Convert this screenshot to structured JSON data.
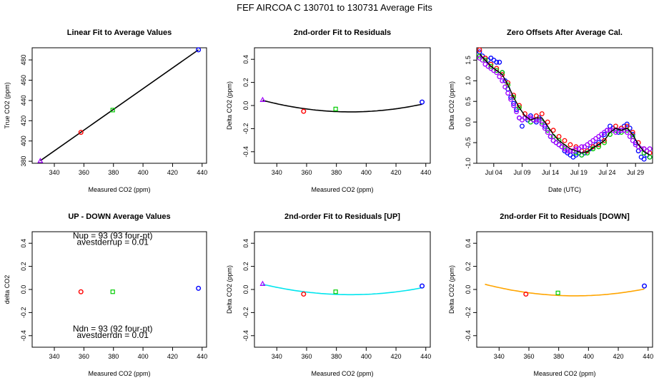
{
  "suptitle": "FEF   AIRCOA C   130701 to 130731   Average Fits",
  "colors": {
    "red": "#ff0000",
    "green": "#00cc00",
    "blue": "#0000ff",
    "violet": "#a000ff",
    "cyan": "#00e5ee",
    "orange": "#ffa500",
    "black": "#000000"
  },
  "chart_data": [
    {
      "type": "scatter",
      "title": "Linear Fit to Average Values",
      "xlabel": "Measured CO2 (ppm)",
      "ylabel": "True CO2 (ppm)",
      "xlim": [
        325,
        443
      ],
      "ylim": [
        378,
        492
      ],
      "xticks": [
        340,
        360,
        380,
        400,
        420,
        440
      ],
      "yticks": [
        380,
        400,
        420,
        440,
        460,
        480
      ],
      "points": [
        {
          "x": 330.5,
          "y": 380.5,
          "color": "violet"
        },
        {
          "x": 358.0,
          "y": 408.5,
          "color": "red"
        },
        {
          "x": 379.5,
          "y": 430.5,
          "color": "green"
        },
        {
          "x": 437.5,
          "y": 490.0,
          "color": "blue"
        }
      ],
      "fit_line": {
        "x": [
          330.5,
          437.5
        ],
        "y": [
          380.5,
          490.0
        ],
        "color": "black"
      }
    },
    {
      "type": "scatter",
      "title": "2nd-order Fit to Residuals",
      "xlabel": "Measured CO2 (ppm)",
      "ylabel": "Delta CO2 (ppm)",
      "xlim": [
        325,
        443
      ],
      "ylim": [
        -0.5,
        0.5
      ],
      "xticks": [
        340,
        360,
        380,
        400,
        420,
        440
      ],
      "yticks": [
        -0.4,
        -0.2,
        0.0,
        0.2,
        0.4
      ],
      "points": [
        {
          "x": 330.5,
          "y": 0.05,
          "color": "violet"
        },
        {
          "x": 358.0,
          "y": -0.05,
          "color": "red"
        },
        {
          "x": 379.5,
          "y": -0.03,
          "color": "green"
        },
        {
          "x": 437.5,
          "y": 0.03,
          "color": "blue"
        }
      ],
      "fit_curve": {
        "x0": 330.5,
        "y0": 0.045,
        "xv": 389.5,
        "yv": -0.055,
        "x1": 437.5,
        "color": "black"
      }
    },
    {
      "type": "scatter",
      "title": "Zero Offsets After Average Cal.",
      "xlabel": "Date (UTC)",
      "ylabel": "Delta CO2 (ppm)",
      "xlim": [
        0,
        31
      ],
      "ylim": [
        -1.0,
        1.8
      ],
      "xticks": [
        3.0,
        8.0,
        13.0,
        18.0,
        23.0,
        28.0
      ],
      "xticklabels": [
        "Jul 04",
        "Jul 09",
        "Jul 14",
        "Jul 19",
        "Jul 24",
        "Jul 29"
      ],
      "yticks": [
        -1.0,
        -0.5,
        0.0,
        0.5,
        1.0,
        1.5
      ],
      "yticklabels": [
        "-1.0",
        "-0.5",
        "0.0",
        "0.5",
        "1.0",
        "1.5"
      ],
      "series": [
        {
          "color": "blue",
          "x": [
            0.5,
            1.0,
            1.5,
            2.0,
            2.5,
            3.0,
            3.5,
            4.0,
            4.5,
            5.0,
            5.5,
            6.0,
            6.5,
            7.0,
            7.5,
            8.0,
            8.5,
            9.0,
            9.5,
            10.0,
            10.5,
            11.0,
            11.5,
            12.0,
            12.5,
            13.0,
            13.5,
            14.0,
            14.5,
            15.0,
            15.5,
            16.0,
            16.5,
            17.0,
            17.5,
            18.0,
            18.5,
            19.0,
            19.5,
            20.0,
            20.5,
            21.0,
            21.5,
            22.0,
            22.5,
            23.0,
            23.5,
            24.0,
            24.5,
            25.0,
            25.5,
            26.0,
            26.5,
            27.0,
            27.5,
            28.0,
            28.5,
            29.0,
            29.5,
            30.0,
            30.5
          ],
          "y": [
            1.7,
            1.6,
            1.55,
            1.5,
            1.55,
            1.5,
            1.45,
            1.45,
            1.2,
            1.0,
            0.8,
            0.6,
            0.45,
            0.3,
            0.1,
            -0.1,
            0.1,
            0.05,
            0.15,
            0.05,
            0.0,
            0.1,
            0.0,
            -0.1,
            -0.2,
            -0.35,
            -0.45,
            -0.5,
            -0.55,
            -0.6,
            -0.7,
            -0.75,
            -0.8,
            -0.85,
            -0.8,
            -0.75,
            -0.8,
            -0.75,
            -0.7,
            -0.65,
            -0.6,
            -0.55,
            -0.5,
            -0.4,
            -0.3,
            -0.2,
            -0.1,
            -0.15,
            -0.2,
            -0.25,
            -0.15,
            -0.1,
            -0.05,
            -0.15,
            -0.3,
            -0.5,
            -0.7,
            -0.85,
            -0.9,
            -0.8,
            -0.85
          ]
        },
        {
          "color": "red",
          "x": [
            0.5,
            1.5,
            2.5,
            3.5,
            4.5,
            5.5,
            6.5,
            7.5,
            8.5,
            9.5,
            10.5,
            11.5,
            12.5,
            13.5,
            14.5,
            15.5,
            16.5,
            17.5,
            18.5,
            19.5,
            20.5,
            21.5,
            22.5,
            23.5,
            24.5,
            25.5,
            26.5,
            27.5,
            28.5,
            29.5,
            30.5
          ],
          "y": [
            1.75,
            1.55,
            1.4,
            1.3,
            1.15,
            0.95,
            0.65,
            0.4,
            0.2,
            0.1,
            0.15,
            0.2,
            0.0,
            -0.2,
            -0.35,
            -0.45,
            -0.55,
            -0.6,
            -0.7,
            -0.7,
            -0.6,
            -0.55,
            -0.45,
            -0.2,
            -0.1,
            -0.15,
            -0.1,
            -0.25,
            -0.5,
            -0.65,
            -0.75
          ]
        },
        {
          "color": "green",
          "x": [
            0.5,
            1.5,
            2.5,
            3.5,
            4.5,
            5.5,
            6.5,
            7.5,
            8.5,
            9.5,
            10.5,
            11.5,
            12.5,
            13.5,
            14.5,
            15.5,
            16.5,
            17.5,
            18.5,
            19.5,
            20.5,
            21.5,
            22.5,
            23.5,
            24.5,
            25.5,
            26.5,
            27.5,
            28.5,
            29.5,
            30.5
          ],
          "y": [
            1.6,
            1.5,
            1.35,
            1.25,
            1.2,
            0.9,
            0.6,
            0.35,
            0.1,
            0.0,
            0.05,
            0.0,
            -0.2,
            -0.35,
            -0.45,
            -0.6,
            -0.7,
            -0.75,
            -0.8,
            -0.75,
            -0.65,
            -0.6,
            -0.5,
            -0.3,
            -0.2,
            -0.25,
            -0.2,
            -0.35,
            -0.6,
            -0.75,
            -0.85
          ]
        },
        {
          "color": "violet",
          "x": [
            0.5,
            1.0,
            1.5,
            2.0,
            2.5,
            3.0,
            3.5,
            4.0,
            4.5,
            5.0,
            5.5,
            6.0,
            6.5,
            7.0,
            7.5,
            8.0,
            8.5,
            9.0,
            9.5,
            10.0,
            10.5,
            11.0,
            11.5,
            12.0,
            12.5,
            13.0,
            13.5,
            14.0,
            14.5,
            15.0,
            15.5,
            16.0,
            16.5,
            17.0,
            17.5,
            18.0,
            18.5,
            19.0,
            19.5,
            20.0,
            20.5,
            21.0,
            21.5,
            22.0,
            22.5,
            23.0,
            23.5,
            24.0,
            24.5,
            25.0,
            25.5,
            26.0,
            26.5,
            27.0,
            27.5,
            28.0,
            28.5,
            29.0,
            29.5,
            30.0,
            30.5
          ],
          "y": [
            1.55,
            1.5,
            1.4,
            1.35,
            1.3,
            1.25,
            1.2,
            1.1,
            1.0,
            0.85,
            0.7,
            0.55,
            0.4,
            0.25,
            0.1,
            0.05,
            0.1,
            0.1,
            0.1,
            0.05,
            0.05,
            0.05,
            -0.05,
            -0.15,
            -0.25,
            -0.35,
            -0.45,
            -0.5,
            -0.55,
            -0.6,
            -0.65,
            -0.7,
            -0.7,
            -0.7,
            -0.65,
            -0.65,
            -0.6,
            -0.6,
            -0.55,
            -0.5,
            -0.45,
            -0.4,
            -0.35,
            -0.3,
            -0.25,
            -0.2,
            -0.2,
            -0.2,
            -0.25,
            -0.2,
            -0.2,
            -0.2,
            -0.25,
            -0.35,
            -0.45,
            -0.55,
            -0.6,
            -0.65,
            -0.65,
            -0.7,
            -0.65
          ]
        },
        {
          "color": "black",
          "x": [
            0.5,
            1.5,
            2.5,
            3.5,
            4.5,
            5.5,
            6.5,
            7.5,
            8.5,
            9.5,
            10.5,
            11.5,
            12.5,
            13.5,
            14.5,
            15.5,
            16.5,
            17.5,
            18.5,
            19.5,
            20.5,
            21.5,
            22.5,
            23.5,
            24.5,
            25.5,
            26.5,
            27.5,
            28.5,
            29.5,
            30.5
          ],
          "y": [
            1.65,
            1.5,
            1.35,
            1.25,
            1.15,
            0.9,
            0.6,
            0.35,
            0.15,
            0.05,
            0.1,
            0.1,
            -0.1,
            -0.3,
            -0.45,
            -0.55,
            -0.65,
            -0.7,
            -0.75,
            -0.72,
            -0.62,
            -0.55,
            -0.45,
            -0.25,
            -0.15,
            -0.2,
            -0.15,
            -0.3,
            -0.55,
            -0.72,
            -0.8
          ]
        }
      ]
    },
    {
      "type": "scatter",
      "title": "UP - DOWN Average Values",
      "xlabel": "Measured CO2 (ppm)",
      "ylabel": "delta CO2",
      "xlim": [
        325,
        443
      ],
      "ylim": [
        -0.5,
        0.5
      ],
      "xticks": [
        340,
        360,
        380,
        400,
        420,
        440
      ],
      "yticks": [
        -0.4,
        -0.2,
        0.0,
        0.2,
        0.4
      ],
      "points": [
        {
          "x": 358.0,
          "y": -0.02,
          "color": "red"
        },
        {
          "x": 379.5,
          "y": -0.02,
          "color": "green"
        },
        {
          "x": 437.5,
          "y": 0.01,
          "color": "blue"
        }
      ],
      "annotations": [
        {
          "text": "Nup = 93 (93 four-pt)",
          "x": 379.5,
          "y": 0.44
        },
        {
          "text": "avestderrup =  0.01",
          "x": 379.5,
          "y": 0.385
        },
        {
          "text": "Ndn = 93 (92 four-pt)",
          "x": 379.5,
          "y": -0.365
        },
        {
          "text": "avestderrdn =  0.01",
          "x": 379.5,
          "y": -0.42
        }
      ]
    },
    {
      "type": "scatter",
      "title": "2nd-order Fit to Residuals [UP]",
      "xlabel": "Measured CO2 (ppm)",
      "ylabel": "Delta CO2 (ppm)",
      "xlim": [
        325,
        443
      ],
      "ylim": [
        -0.5,
        0.5
      ],
      "xticks": [
        340,
        360,
        380,
        400,
        420,
        440
      ],
      "yticks": [
        -0.4,
        -0.2,
        0.0,
        0.2,
        0.4
      ],
      "points": [
        {
          "x": 330.5,
          "y": 0.05,
          "color": "violet"
        },
        {
          "x": 358.0,
          "y": -0.04,
          "color": "red"
        },
        {
          "x": 379.5,
          "y": -0.02,
          "color": "green"
        },
        {
          "x": 437.5,
          "y": 0.03,
          "color": "blue"
        }
      ],
      "fit_curve": {
        "x0": 330.5,
        "y0": 0.045,
        "xv": 389.5,
        "yv": -0.045,
        "x1": 437.5,
        "color": "cyan"
      }
    },
    {
      "type": "scatter",
      "title": "2nd-order Fit to Residuals [DOWN]",
      "xlabel": "Measured CO2 (ppm)",
      "ylabel": "Delta CO2 (ppm)",
      "xlim": [
        325,
        443
      ],
      "ylim": [
        -0.5,
        0.5
      ],
      "xticks": [
        340,
        360,
        380,
        400,
        420,
        440
      ],
      "yticks": [
        -0.4,
        -0.2,
        0.0,
        0.2,
        0.4
      ],
      "points": [
        {
          "x": 358.0,
          "y": -0.04,
          "color": "red"
        },
        {
          "x": 379.5,
          "y": -0.03,
          "color": "green"
        },
        {
          "x": 437.5,
          "y": 0.03,
          "color": "blue"
        }
      ],
      "fit_curve": {
        "x0": 330.5,
        "y0": 0.045,
        "xv": 391.0,
        "yv": -0.055,
        "x1": 437.5,
        "color": "orange"
      }
    }
  ]
}
